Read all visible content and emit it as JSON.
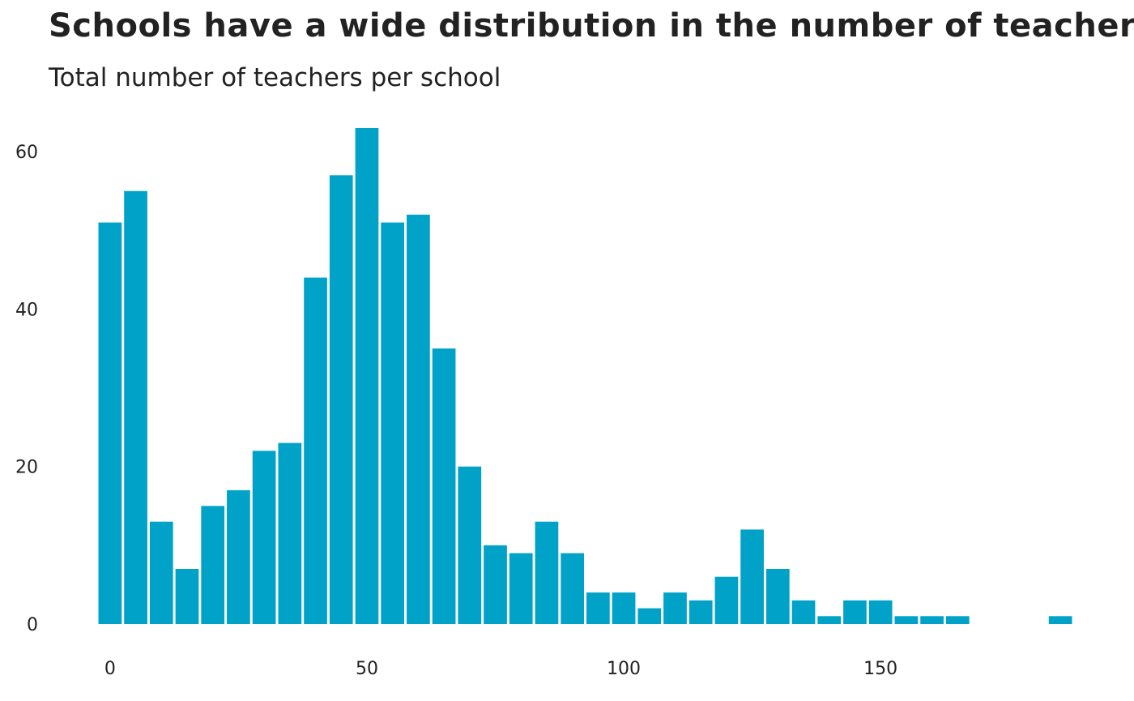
{
  "chart_data": {
    "type": "bar",
    "title": "Schools have a wide distribution in the number of teachers",
    "subtitle": "Total number of teachers per school",
    "xlabel": "",
    "ylabel": "",
    "bin_width": 5,
    "x": [
      0,
      5,
      10,
      15,
      20,
      25,
      30,
      35,
      40,
      45,
      50,
      55,
      60,
      65,
      70,
      75,
      80,
      85,
      90,
      95,
      100,
      105,
      110,
      115,
      120,
      125,
      130,
      135,
      140,
      145,
      150,
      155,
      160,
      165,
      170,
      175,
      180,
      185
    ],
    "values": [
      51,
      55,
      13,
      7,
      15,
      17,
      22,
      23,
      44,
      57,
      63,
      51,
      52,
      35,
      20,
      10,
      9,
      13,
      9,
      4,
      4,
      2,
      4,
      3,
      6,
      12,
      7,
      3,
      1,
      3,
      3,
      1,
      1,
      1,
      0,
      0,
      0,
      1
    ],
    "xlim": [
      -2.5,
      187.5
    ],
    "ylim": [
      0,
      63
    ],
    "x_ticks": [
      0,
      50,
      100,
      150
    ],
    "y_ticks": [
      0,
      20,
      40,
      60
    ],
    "grid": false,
    "bar_color": "#00A3C7",
    "text_color": "#222222"
  }
}
